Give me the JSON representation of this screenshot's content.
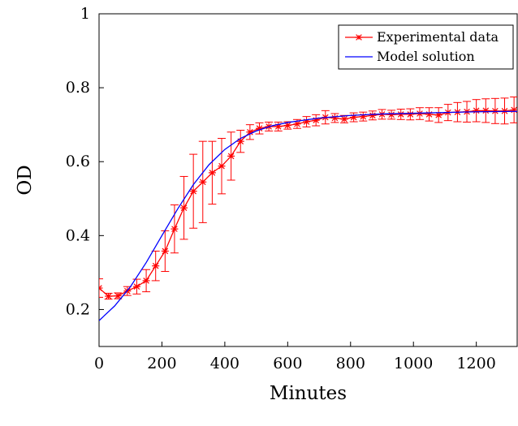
{
  "chart_data": {
    "type": "line",
    "title": "",
    "xlabel": "Minutes",
    "ylabel": "OD",
    "xlim": [
      0,
      1330
    ],
    "ylim": [
      0.1,
      1.0
    ],
    "xticks": [
      0,
      200,
      400,
      600,
      800,
      1000,
      1200
    ],
    "yticks": [
      0.2,
      0.4,
      0.6,
      0.8,
      1.0
    ],
    "xtick_labels": [
      "0",
      "200",
      "400",
      "600",
      "800",
      "1000",
      "1200"
    ],
    "ytick_labels": [
      "0.2",
      "0.4",
      "0.6",
      "0.8",
      "1"
    ],
    "grid": false,
    "legend_position": "top-right",
    "series": [
      {
        "name": "Experimental data",
        "color": "#ff0000",
        "marker": "star",
        "error_bars": true,
        "x": [
          0,
          30,
          60,
          90,
          120,
          150,
          180,
          210,
          240,
          270,
          300,
          330,
          360,
          390,
          420,
          450,
          480,
          510,
          540,
          570,
          600,
          630,
          660,
          690,
          720,
          750,
          780,
          810,
          840,
          870,
          900,
          930,
          960,
          990,
          1020,
          1050,
          1080,
          1110,
          1140,
          1170,
          1200,
          1230,
          1260,
          1290,
          1320
        ],
        "y": [
          0.258,
          0.236,
          0.237,
          0.25,
          0.262,
          0.278,
          0.318,
          0.358,
          0.418,
          0.475,
          0.52,
          0.545,
          0.57,
          0.588,
          0.615,
          0.655,
          0.68,
          0.69,
          0.695,
          0.695,
          0.698,
          0.702,
          0.708,
          0.712,
          0.72,
          0.718,
          0.715,
          0.72,
          0.722,
          0.725,
          0.728,
          0.727,
          0.728,
          0.728,
          0.73,
          0.728,
          0.726,
          0.733,
          0.734,
          0.735,
          0.738,
          0.738,
          0.737,
          0.737,
          0.74
        ],
        "error": [
          0.025,
          0.008,
          0.008,
          0.012,
          0.02,
          0.03,
          0.04,
          0.055,
          0.065,
          0.085,
          0.1,
          0.11,
          0.085,
          0.075,
          0.065,
          0.03,
          0.02,
          0.015,
          0.012,
          0.012,
          0.01,
          0.012,
          0.014,
          0.015,
          0.018,
          0.012,
          0.01,
          0.012,
          0.012,
          0.012,
          0.013,
          0.012,
          0.014,
          0.015,
          0.016,
          0.018,
          0.02,
          0.022,
          0.026,
          0.028,
          0.03,
          0.032,
          0.034,
          0.035,
          0.035
        ]
      },
      {
        "name": "Model solution",
        "color": "#0000ff",
        "marker": "none",
        "x": [
          0,
          50,
          100,
          150,
          200,
          250,
          300,
          350,
          400,
          450,
          500,
          550,
          600,
          700,
          800,
          900,
          1000,
          1100,
          1200,
          1330
        ],
        "y": [
          0.17,
          0.21,
          0.262,
          0.327,
          0.4,
          0.472,
          0.538,
          0.592,
          0.633,
          0.663,
          0.683,
          0.697,
          0.706,
          0.718,
          0.725,
          0.729,
          0.731,
          0.733,
          0.735,
          0.736
        ]
      }
    ]
  }
}
